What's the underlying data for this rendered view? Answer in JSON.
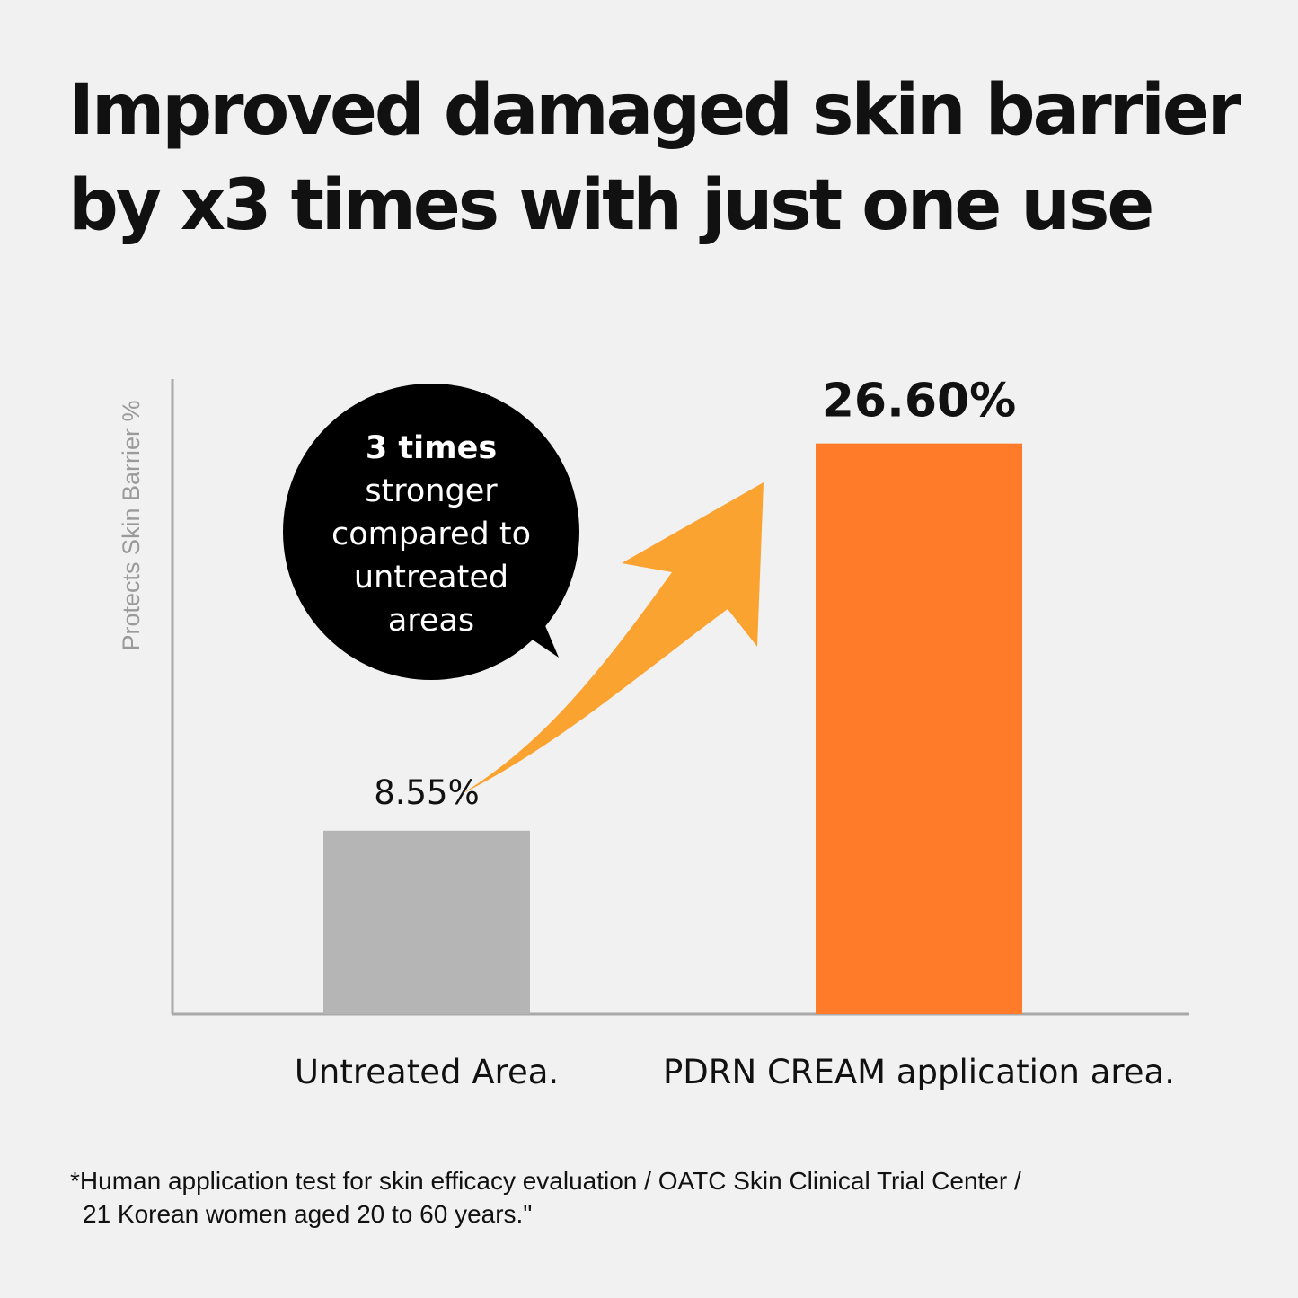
{
  "title": {
    "line1": "Improved damaged skin barrier",
    "line2": "by x3 times with just one use"
  },
  "callout": {
    "lines": [
      "3 times",
      "stronger",
      "compared to",
      "untreated",
      "areas"
    ]
  },
  "footnote": {
    "line1": "*Human application test for skin efficacy evaluation / OATC Skin Clinical Trial Center /",
    "line2": "21 Korean women aged 20 to 60 years.\""
  },
  "chart_data": {
    "type": "bar",
    "categories": [
      "Untreated Area.",
      "PDRN CREAM application area."
    ],
    "values": [
      8.55,
      26.6
    ],
    "data_labels": [
      "8.55%",
      "26.60%"
    ],
    "colors": [
      "#b5b5b5",
      "#ff7a29"
    ],
    "arrow_color": "#fba330",
    "ylabel": "Protects Skin Barrier %",
    "xlabel": "",
    "ylim": [
      0,
      29.6
    ],
    "grid": false
  }
}
